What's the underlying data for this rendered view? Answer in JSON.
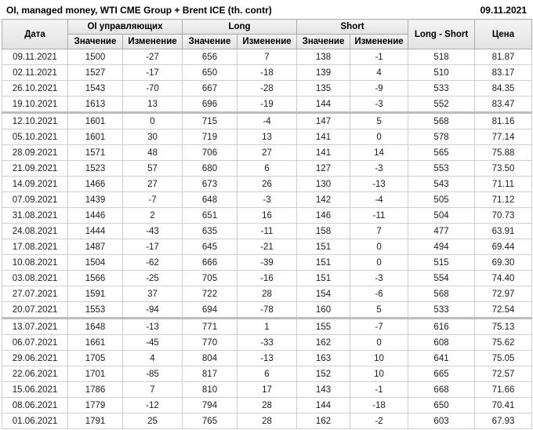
{
  "header": {
    "title": "OI, managed money, WTI CME Group + Brent ICE (th. contr)",
    "date": "09.11.2021"
  },
  "colors": {
    "positive": "#009700",
    "negative": "#cf0d0d",
    "header_bg": "#e9e9e9",
    "grid_line": "#cfcfcf"
  },
  "table": {
    "col_date": "Дата",
    "group_oi": "OI управляющих",
    "group_long": "Long",
    "group_short": "Short",
    "col_long_short": "Long - Short",
    "col_price": "Цена",
    "sub_value": "Значение",
    "sub_change": "Изменение",
    "rows": [
      {
        "date": "09.11.2021",
        "oi": 1500,
        "oi_chg": -27,
        "oi_dir": "neg",
        "long": 656,
        "long_chg": 7,
        "long_dir": "pos",
        "short": 138,
        "short_chg": -1,
        "short_dir": "neg",
        "long_short": 518,
        "price": "81.87",
        "separator": false
      },
      {
        "date": "02.11.2021",
        "oi": 1527,
        "oi_chg": -17,
        "oi_dir": "neg",
        "long": 650,
        "long_chg": -18,
        "long_dir": "neg",
        "short": 139,
        "short_chg": 4,
        "short_dir": "pos",
        "long_short": 510,
        "price": "83.17",
        "separator": false
      },
      {
        "date": "26.10.2021",
        "oi": 1543,
        "oi_chg": -70,
        "oi_dir": "neg",
        "long": 667,
        "long_chg": -28,
        "long_dir": "neg",
        "short": 135,
        "short_chg": -9,
        "short_dir": "neg",
        "long_short": 533,
        "price": "84.35",
        "separator": false
      },
      {
        "date": "19.10.2021",
        "oi": 1613,
        "oi_chg": 13,
        "oi_dir": "pos",
        "long": 696,
        "long_chg": -19,
        "long_dir": "neg",
        "short": 144,
        "short_chg": -3,
        "short_dir": "neg",
        "long_short": 552,
        "price": "83.47",
        "separator": true
      },
      {
        "date": "12.10.2021",
        "oi": 1601,
        "oi_chg": 0,
        "oi_dir": "pos",
        "long": 715,
        "long_chg": -4,
        "long_dir": "neg",
        "short": 147,
        "short_chg": 5,
        "short_dir": "pos",
        "long_short": 568,
        "price": "81.16",
        "separator": false
      },
      {
        "date": "05.10.2021",
        "oi": 1601,
        "oi_chg": 30,
        "oi_dir": "pos",
        "long": 719,
        "long_chg": 13,
        "long_dir": "pos",
        "short": 141,
        "short_chg": 0,
        "short_dir": "neg",
        "long_short": 578,
        "price": "77.14",
        "separator": false
      },
      {
        "date": "28.09.2021",
        "oi": 1571,
        "oi_chg": 48,
        "oi_dir": "pos",
        "long": 706,
        "long_chg": 27,
        "long_dir": "pos",
        "short": 141,
        "short_chg": 14,
        "short_dir": "pos",
        "long_short": 565,
        "price": "75.88",
        "separator": false
      },
      {
        "date": "21.09.2021",
        "oi": 1523,
        "oi_chg": 57,
        "oi_dir": "pos",
        "long": 680,
        "long_chg": 6,
        "long_dir": "pos",
        "short": 127,
        "short_chg": -3,
        "short_dir": "neg",
        "long_short": 553,
        "price": "73.50",
        "separator": false
      },
      {
        "date": "14.09.2021",
        "oi": 1466,
        "oi_chg": 27,
        "oi_dir": "pos",
        "long": 673,
        "long_chg": 26,
        "long_dir": "pos",
        "short": 130,
        "short_chg": -13,
        "short_dir": "neg",
        "long_short": 543,
        "price": "71.11",
        "separator": false
      },
      {
        "date": "07.09.2021",
        "oi": 1439,
        "oi_chg": -7,
        "oi_dir": "neg",
        "long": 648,
        "long_chg": -3,
        "long_dir": "neg",
        "short": 142,
        "short_chg": -4,
        "short_dir": "neg",
        "long_short": 505,
        "price": "71.12",
        "separator": false
      },
      {
        "date": "31.08.2021",
        "oi": 1446,
        "oi_chg": 2,
        "oi_dir": "pos",
        "long": 651,
        "long_chg": 16,
        "long_dir": "pos",
        "short": 146,
        "short_chg": -11,
        "short_dir": "neg",
        "long_short": 504,
        "price": "70.73",
        "separator": false
      },
      {
        "date": "24.08.2021",
        "oi": 1444,
        "oi_chg": -43,
        "oi_dir": "neg",
        "long": 635,
        "long_chg": -11,
        "long_dir": "neg",
        "short": 158,
        "short_chg": 7,
        "short_dir": "pos",
        "long_short": 477,
        "price": "63.91",
        "separator": false
      },
      {
        "date": "17.08.2021",
        "oi": 1487,
        "oi_chg": -17,
        "oi_dir": "neg",
        "long": 645,
        "long_chg": -21,
        "long_dir": "neg",
        "short": 151,
        "short_chg": 0,
        "short_dir": "neg",
        "long_short": 494,
        "price": "69.44",
        "separator": false
      },
      {
        "date": "10.08.2021",
        "oi": 1504,
        "oi_chg": -62,
        "oi_dir": "neg",
        "long": 666,
        "long_chg": -39,
        "long_dir": "neg",
        "short": 151,
        "short_chg": 0,
        "short_dir": "pos",
        "long_short": 515,
        "price": "69.30",
        "separator": false
      },
      {
        "date": "03.08.2021",
        "oi": 1566,
        "oi_chg": -25,
        "oi_dir": "neg",
        "long": 705,
        "long_chg": -16,
        "long_dir": "neg",
        "short": 151,
        "short_chg": -3,
        "short_dir": "neg",
        "long_short": 554,
        "price": "74.40",
        "separator": false
      },
      {
        "date": "27.07.2021",
        "oi": 1591,
        "oi_chg": 37,
        "oi_dir": "pos",
        "long": 722,
        "long_chg": 28,
        "long_dir": "pos",
        "short": 154,
        "short_chg": -6,
        "short_dir": "neg",
        "long_short": 568,
        "price": "72.97",
        "separator": false
      },
      {
        "date": "20.07.2021",
        "oi": 1553,
        "oi_chg": -94,
        "oi_dir": "neg",
        "long": 694,
        "long_chg": -78,
        "long_dir": "neg",
        "short": 160,
        "short_chg": 5,
        "short_dir": "pos",
        "long_short": 533,
        "price": "72.54",
        "separator": true
      },
      {
        "date": "13.07.2021",
        "oi": 1648,
        "oi_chg": -13,
        "oi_dir": "neg",
        "long": 771,
        "long_chg": 1,
        "long_dir": "pos",
        "short": 155,
        "short_chg": -7,
        "short_dir": "neg",
        "long_short": 616,
        "price": "75.13",
        "separator": false
      },
      {
        "date": "06.07.2021",
        "oi": 1661,
        "oi_chg": -45,
        "oi_dir": "neg",
        "long": 770,
        "long_chg": -33,
        "long_dir": "neg",
        "short": 162,
        "short_chg": 0,
        "short_dir": "neg",
        "long_short": 608,
        "price": "75.62",
        "separator": false
      },
      {
        "date": "29.06.2021",
        "oi": 1705,
        "oi_chg": 4,
        "oi_dir": "pos",
        "long": 804,
        "long_chg": -13,
        "long_dir": "neg",
        "short": 163,
        "short_chg": 10,
        "short_dir": "pos",
        "long_short": 641,
        "price": "75.05",
        "separator": false
      },
      {
        "date": "22.06.2021",
        "oi": 1701,
        "oi_chg": -85,
        "oi_dir": "neg",
        "long": 817,
        "long_chg": 6,
        "long_dir": "pos",
        "short": 152,
        "short_chg": 10,
        "short_dir": "pos",
        "long_short": 665,
        "price": "72.57",
        "separator": false
      },
      {
        "date": "15.06.2021",
        "oi": 1786,
        "oi_chg": 7,
        "oi_dir": "pos",
        "long": 810,
        "long_chg": 17,
        "long_dir": "pos",
        "short": 143,
        "short_chg": -1,
        "short_dir": "neg",
        "long_short": 668,
        "price": "71.66",
        "separator": false
      },
      {
        "date": "08.06.2021",
        "oi": 1779,
        "oi_chg": -12,
        "oi_dir": "neg",
        "long": 794,
        "long_chg": 28,
        "long_dir": "pos",
        "short": 144,
        "short_chg": -18,
        "short_dir": "neg",
        "long_short": 650,
        "price": "70.41",
        "separator": false
      },
      {
        "date": "01.06.2021",
        "oi": 1791,
        "oi_chg": 25,
        "oi_dir": "pos",
        "long": 765,
        "long_chg": 28,
        "long_dir": "pos",
        "short": 162,
        "short_chg": -2,
        "short_dir": "neg",
        "long_short": 603,
        "price": "67.93",
        "separator": false
      }
    ]
  }
}
